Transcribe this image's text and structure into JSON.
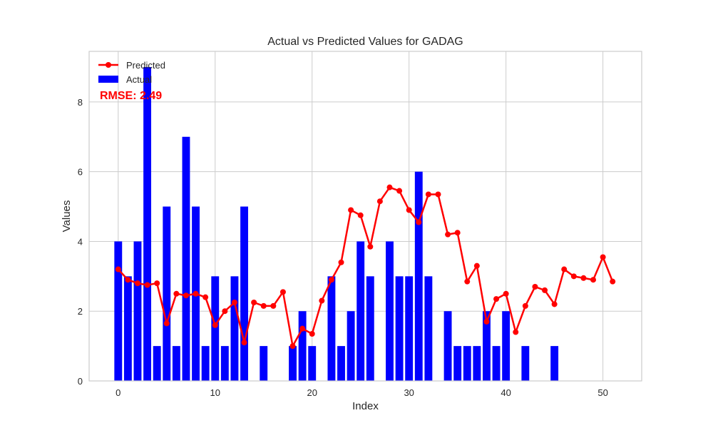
{
  "chart_data": {
    "type": "bar",
    "title": "Actual vs Predicted Values for GADAG",
    "xlabel": "Index",
    "ylabel": "Values",
    "xlim": [
      -3,
      54
    ],
    "ylim": [
      0,
      9.45
    ],
    "xticks": [
      0,
      10,
      20,
      30,
      40,
      50
    ],
    "yticks": [
      0,
      2,
      4,
      6,
      8
    ],
    "grid": true,
    "legend_position": "top-left",
    "annotation": "RMSE: 2.49",
    "series": [
      {
        "name": "Actual",
        "type": "bar",
        "color": "#0000ff",
        "x": [
          0,
          1,
          2,
          3,
          4,
          5,
          6,
          7,
          8,
          9,
          10,
          11,
          12,
          13,
          14,
          15,
          16,
          17,
          18,
          19,
          20,
          21,
          22,
          23,
          24,
          25,
          26,
          27,
          28,
          29,
          30,
          31,
          32,
          33,
          34,
          35,
          36,
          37,
          38,
          39,
          40,
          41,
          42,
          43,
          44,
          45
        ],
        "values": [
          4,
          3,
          4,
          9,
          1,
          5,
          1,
          7,
          5,
          1,
          3,
          1,
          3,
          5,
          0,
          1,
          0,
          0,
          1,
          2,
          1,
          0,
          3,
          1,
          2,
          4,
          3,
          0,
          4,
          3,
          3,
          6,
          3,
          0,
          2,
          1,
          1,
          1,
          2,
          1,
          2,
          0,
          1,
          0,
          0,
          1
        ]
      },
      {
        "name": "Predicted",
        "type": "line",
        "color": "#ff0000",
        "x": [
          0,
          1,
          2,
          3,
          4,
          5,
          6,
          7,
          8,
          9,
          10,
          11,
          12,
          13,
          14,
          15,
          16,
          17,
          18,
          19,
          20,
          21,
          22,
          23,
          24,
          25,
          26,
          27,
          28,
          29,
          30,
          31,
          32,
          33,
          34,
          35,
          36,
          37,
          38,
          39,
          40,
          41,
          42,
          43,
          44,
          45,
          46,
          47,
          48,
          49,
          50,
          51
        ],
        "values": [
          3.2,
          2.9,
          2.8,
          2.75,
          2.8,
          1.65,
          2.5,
          2.45,
          2.5,
          2.4,
          1.6,
          2.0,
          2.25,
          1.1,
          2.25,
          2.15,
          2.15,
          2.55,
          1.0,
          1.5,
          1.35,
          2.3,
          2.9,
          3.4,
          4.9,
          4.75,
          3.85,
          5.15,
          5.55,
          5.45,
          4.9,
          4.55,
          5.35,
          5.35,
          4.2,
          4.25,
          2.85,
          3.3,
          1.7,
          2.35,
          2.5,
          1.4,
          2.15,
          2.7,
          2.6,
          2.2,
          3.2,
          3.0,
          2.95,
          2.9,
          3.55,
          2.85
        ]
      }
    ]
  }
}
